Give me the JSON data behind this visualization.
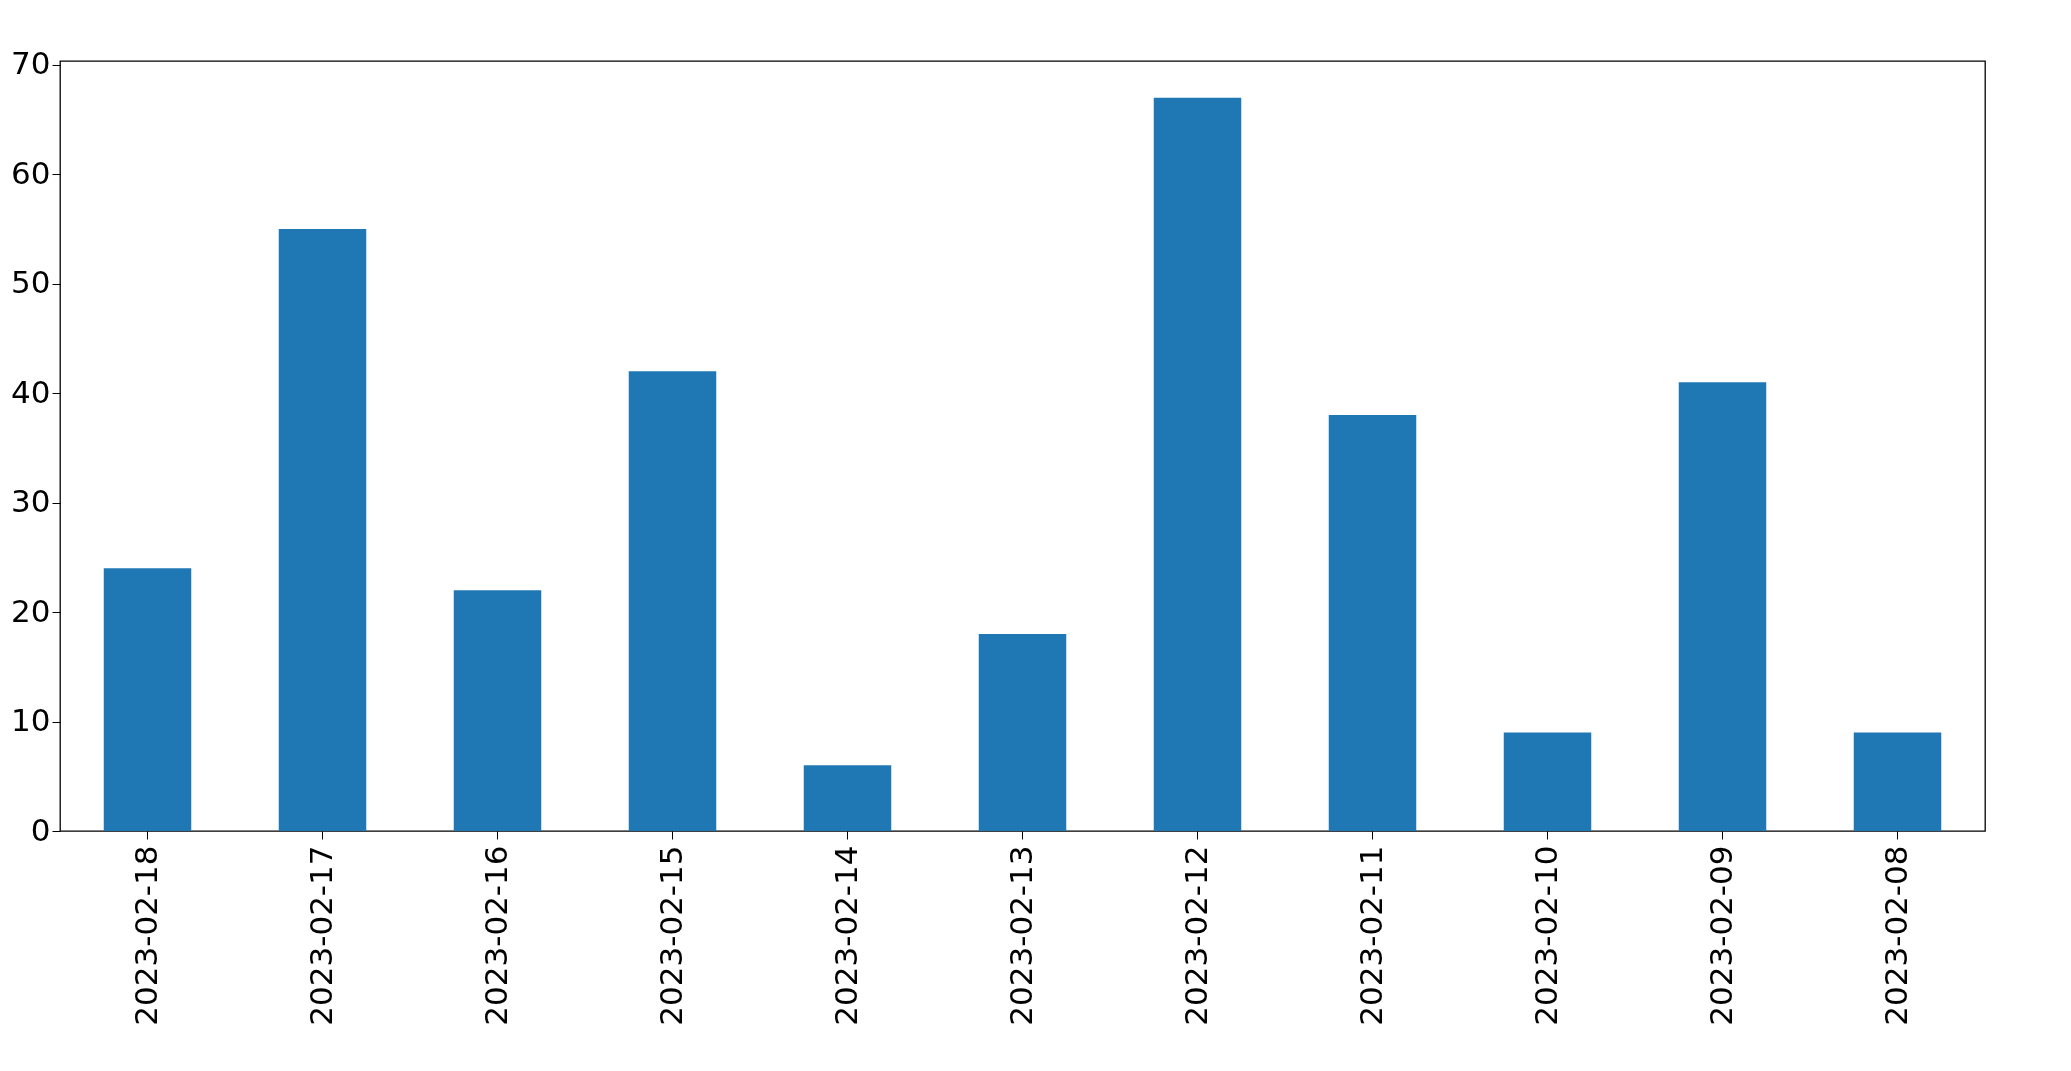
{
  "chart_data": {
    "type": "bar",
    "categories": [
      "2023-02-18",
      "2023-02-17",
      "2023-02-16",
      "2023-02-15",
      "2023-02-14",
      "2023-02-13",
      "2023-02-12",
      "2023-02-11",
      "2023-02-10",
      "2023-02-09",
      "2023-02-08"
    ],
    "values": [
      24,
      55,
      22,
      42,
      6,
      18,
      67,
      38,
      9,
      41,
      9
    ],
    "color": "#1f77b4",
    "ylim": [
      0,
      70.35
    ],
    "yticks": [
      0,
      10,
      20,
      30,
      40,
      50,
      60,
      70
    ],
    "grid": false
  }
}
